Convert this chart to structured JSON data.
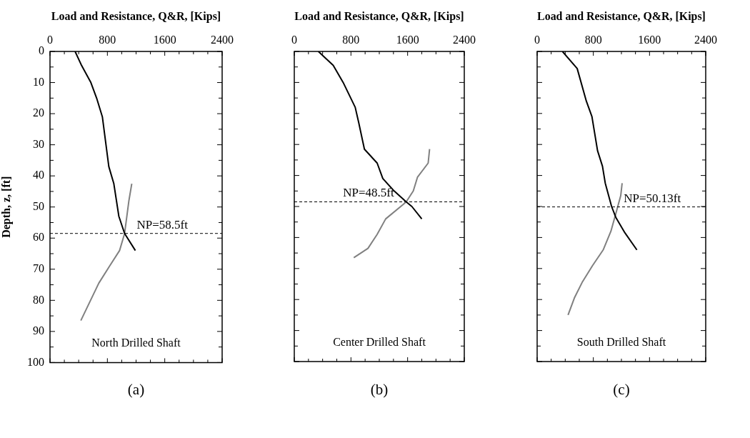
{
  "chart_data": [
    {
      "type": "line",
      "xlabel": "Load and Resistance, Q&R, [Kips]",
      "ylabel": "Depth, z, [ft]",
      "xlim": [
        0,
        2400
      ],
      "xticks": [
        0,
        {
          "value": 200,
          "label": null
        },
        {
          "value": 400,
          "label": null
        },
        {
          "value": 600,
          "label": null
        },
        800,
        {
          "value": 1000,
          "label": null
        },
        {
          "value": 1200,
          "label": null
        },
        {
          "value": 1400,
          "label": null
        },
        1600,
        {
          "value": 1800,
          "label": null
        },
        {
          "value": 2000,
          "label": null
        },
        {
          "value": 2200,
          "label": null
        },
        2400
      ],
      "ylim": [
        100,
        0
      ],
      "yticks": [
        0,
        {
          "value": 5,
          "label": null
        },
        10,
        {
          "value": 15,
          "label": null
        },
        20,
        {
          "value": 25,
          "label": null
        },
        30,
        {
          "value": 35,
          "label": null
        },
        40,
        {
          "value": 45,
          "label": null
        },
        50,
        {
          "value": 55,
          "label": null
        },
        60,
        {
          "value": 65,
          "label": null
        },
        70,
        {
          "value": 75,
          "label": null
        },
        80,
        {
          "value": 85,
          "label": null
        },
        90,
        {
          "value": 95,
          "label": null
        },
        100
      ],
      "series": [
        {
          "color": "#000000",
          "x": [
            350,
            440,
            570,
            650,
            730,
            820,
            890,
            960,
            1040,
            1190
          ],
          "values": [
            0,
            4.5,
            10,
            15,
            21,
            37,
            42.5,
            53,
            58.5,
            64
          ]
        },
        {
          "color": "#808080",
          "x": [
            1140,
            1100,
            1040,
            970,
            830,
            680,
            430
          ],
          "values": [
            42.5,
            48,
            58.5,
            64,
            69,
            74.5,
            86.5
          ]
        }
      ],
      "ref_lines": [
        {
          "axis": "y",
          "value": 58.5,
          "label": "NP=58.5ft",
          "color": "#000000",
          "line_style": "dashed"
        }
      ],
      "annotations": [
        "North Drilled Shaft",
        "(a)"
      ],
      "grid": false,
      "legend": false,
      "marker": "none"
    },
    {
      "type": "line",
      "xlabel": "Load and Resistance, Q&R, [Kips]",
      "xlim": [
        0,
        2400
      ],
      "xticks": [
        0,
        {
          "value": 200,
          "label": null
        },
        {
          "value": 400,
          "label": null
        },
        {
          "value": 600,
          "label": null
        },
        800,
        {
          "value": 1000,
          "label": null
        },
        {
          "value": 1200,
          "label": null
        },
        {
          "value": 1400,
          "label": null
        },
        1600,
        {
          "value": 1800,
          "label": null
        },
        {
          "value": 2000,
          "label": null
        },
        {
          "value": 2200,
          "label": null
        },
        2400
      ],
      "ylim": [
        100,
        0
      ],
      "yticks": [
        0,
        {
          "value": 5,
          "label": null
        },
        10,
        {
          "value": 15,
          "label": null
        },
        20,
        {
          "value": 25,
          "label": null
        },
        30,
        {
          "value": 35,
          "label": null
        },
        40,
        {
          "value": 45,
          "label": null
        },
        50,
        {
          "value": 55,
          "label": null
        },
        60,
        {
          "value": 65,
          "label": null
        },
        70,
        {
          "value": 75,
          "label": null
        },
        80,
        {
          "value": 85,
          "label": null
        },
        90,
        {
          "value": 95,
          "label": null
        },
        100
      ],
      "tick_labels": "x",
      "series": [
        {
          "color": "#000000",
          "x": [
            340,
            550,
            690,
            860,
            910,
            990,
            1170,
            1250,
            1410,
            1580,
            1660,
            1800
          ],
          "values": [
            0,
            4.5,
            10,
            18,
            23,
            31.5,
            36,
            41,
            45,
            48.5,
            50,
            54
          ]
        },
        {
          "color": "#808080",
          "x": [
            1910,
            1890,
            1740,
            1680,
            1580,
            1530,
            1290,
            1170,
            1040,
            840
          ],
          "values": [
            31.5,
            36,
            40.5,
            45,
            48.5,
            49.5,
            54,
            59,
            63.5,
            66.5
          ]
        }
      ],
      "ref_lines": [
        {
          "axis": "y",
          "value": 48.5,
          "label": "NP=48.5ft",
          "color": "#000000",
          "line_style": "dashed"
        }
      ],
      "annotations": [
        "Center Drilled Shaft",
        "(b)"
      ],
      "grid": false,
      "legend": false,
      "marker": "none"
    },
    {
      "type": "line",
      "xlabel": "Load and Resistance, Q&R, [Kips]",
      "xlim": [
        0,
        2400
      ],
      "xticks": [
        0,
        {
          "value": 200,
          "label": null
        },
        {
          "value": 400,
          "label": null
        },
        {
          "value": 600,
          "label": null
        },
        800,
        {
          "value": 1000,
          "label": null
        },
        {
          "value": 1200,
          "label": null
        },
        {
          "value": 1400,
          "label": null
        },
        1600,
        {
          "value": 1800,
          "label": null
        },
        {
          "value": 2000,
          "label": null
        },
        {
          "value": 2200,
          "label": null
        },
        2400
      ],
      "ylim": [
        100,
        0
      ],
      "yticks": [
        0,
        {
          "value": 5,
          "label": null
        },
        10,
        {
          "value": 15,
          "label": null
        },
        20,
        {
          "value": 25,
          "label": null
        },
        30,
        {
          "value": 35,
          "label": null
        },
        40,
        {
          "value": 45,
          "label": null
        },
        50,
        {
          "value": 55,
          "label": null
        },
        60,
        {
          "value": 65,
          "label": null
        },
        70,
        {
          "value": 75,
          "label": null
        },
        80,
        {
          "value": 85,
          "label": null
        },
        90,
        {
          "value": 95,
          "label": null
        },
        100
      ],
      "tick_labels": "x",
      "series": [
        {
          "color": "#000000",
          "x": [
            360,
            570,
            700,
            780,
            860,
            930,
            970,
            1060,
            1120,
            1250,
            1420
          ],
          "values": [
            0,
            5.5,
            16,
            21,
            32,
            37,
            42.5,
            50,
            53.5,
            58.5,
            64
          ]
        },
        {
          "color": "#808080",
          "x": [
            1210,
            1190,
            1130,
            1050,
            940,
            790,
            640,
            530,
            440
          ],
          "values": [
            42.5,
            46.5,
            51.5,
            58,
            64,
            69,
            74.5,
            79.5,
            85
          ]
        }
      ],
      "ref_lines": [
        {
          "axis": "y",
          "value": 50.13,
          "label": "NP=50.13ft",
          "color": "#000000",
          "line_style": "dashed"
        }
      ],
      "annotations": [
        "South Drilled Shaft",
        "(c)"
      ],
      "grid": false,
      "legend": false,
      "marker": "none"
    }
  ]
}
